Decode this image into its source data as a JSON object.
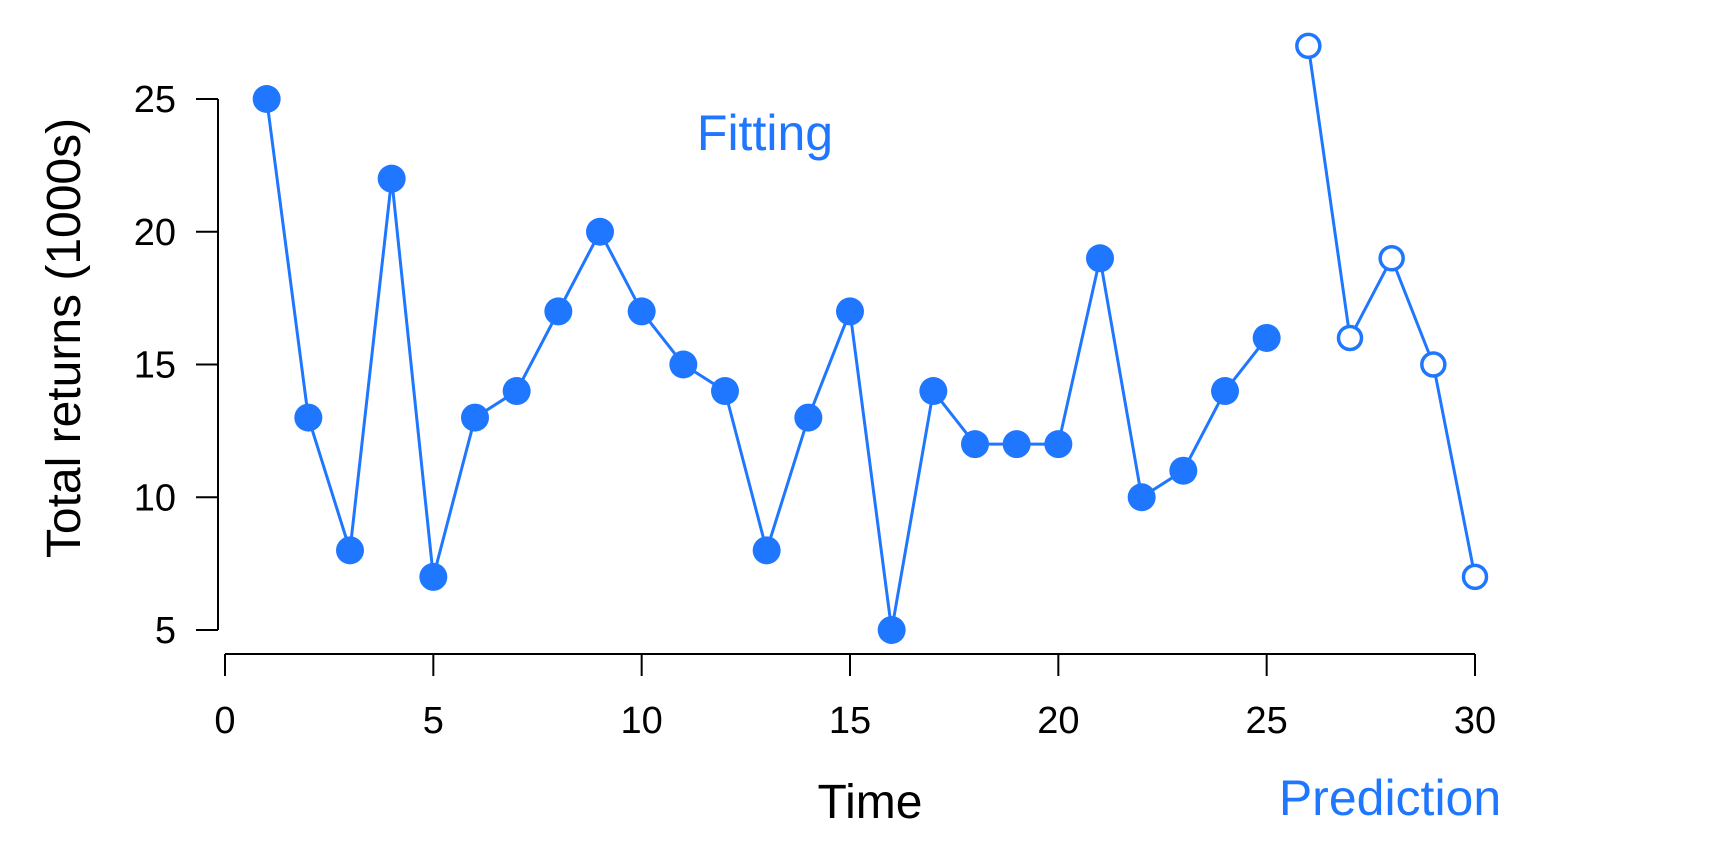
{
  "chart_data": {
    "type": "line",
    "xlabel": "Time",
    "ylabel": "Total returns (1000s)",
    "xlim": [
      0,
      30
    ],
    "ylim": [
      5,
      27
    ],
    "xticks": [
      0,
      5,
      10,
      15,
      20,
      25,
      30
    ],
    "yticks": [
      5,
      10,
      15,
      20,
      25
    ],
    "grid": false,
    "color": "#1f77ff",
    "annotations": [
      {
        "text": "Fitting"
      },
      {
        "text": "Prediction"
      }
    ],
    "series": [
      {
        "marker": "filled-circle",
        "x": [
          1,
          2,
          3,
          4,
          5,
          6,
          7,
          8,
          9,
          10,
          11,
          12,
          13,
          14,
          15,
          16,
          17,
          18,
          19,
          20,
          21,
          22,
          23,
          24,
          25
        ],
        "y": [
          25,
          13,
          8,
          22,
          7,
          13,
          14,
          17,
          20,
          17,
          15,
          14,
          8,
          13,
          17,
          5,
          14,
          12,
          12,
          12,
          19,
          10,
          11,
          14,
          16
        ]
      },
      {
        "marker": "open-circle",
        "x": [
          26,
          27,
          28,
          29,
          30
        ],
        "y": [
          27,
          16,
          19,
          15,
          7
        ]
      }
    ]
  }
}
